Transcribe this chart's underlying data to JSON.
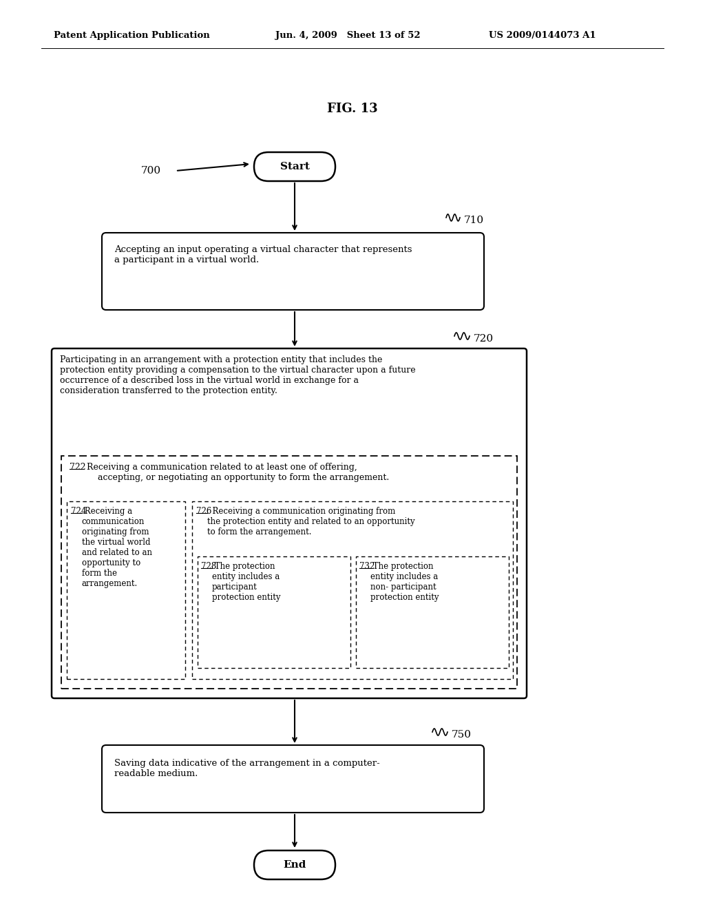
{
  "title": "FIG. 13",
  "header_left": "Patent Application Publication",
  "header_mid": "Jun. 4, 2009   Sheet 13 of 52",
  "header_right": "US 2009/0144073 A1",
  "bg_color": "#ffffff",
  "label_700": "700",
  "label_710": "710",
  "label_720": "720",
  "label_750": "750",
  "start_text": "Start",
  "end_text": "End",
  "box710_text": "Accepting an input operating a virtual character that represents\na participant in a virtual world.",
  "box720_text_top": "Participating in an arrangement with a protection entity that includes the\nprotection entity providing a compensation to the virtual character upon a future\noccurrence of a described loss in the virtual world in exchange for a\nconsideration transferred to the protection entity.",
  "box722_label": "722",
  "box722_text": "  Receiving a communication related to at least one of offering,\n      accepting, or negotiating an opportunity to form the arrangement.",
  "box724_label": "724",
  "box724_text": " Receiving a\ncommunication\noriginating from\nthe virtual world\nand related to an\nopportunity to\nform the\narrangement.",
  "box726_label": "726",
  "box726_text": "  Receiving a communication originating from\nthe protection entity and related to an opportunity\nto form the arrangement.",
  "box728_label": "728",
  "box728_text": " The protection\nentity includes a\nparticipant\nprotection entity",
  "box732_label": "732",
  "box732_text": " The protection\nentity includes a\nnon- participant\nprotection entity",
  "box750_text": "Saving data indicative of the arrangement in a computer-\nreadable medium."
}
